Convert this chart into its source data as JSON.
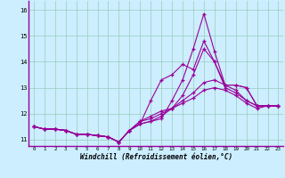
{
  "xlabel": "Windchill (Refroidissement éolien,°C)",
  "background_color": "#cceeff",
  "grid_color": "#99ccbb",
  "line_color": "#990099",
  "spine_color": "#990099",
  "xlim_min": -0.5,
  "xlim_max": 23.5,
  "ylim_min": 10.75,
  "ylim_max": 16.35,
  "yticks": [
    11,
    12,
    13,
    14,
    15,
    16
  ],
  "xticks": [
    0,
    1,
    2,
    3,
    4,
    5,
    6,
    7,
    8,
    9,
    10,
    11,
    12,
    13,
    14,
    15,
    16,
    17,
    18,
    19,
    20,
    21,
    22,
    23
  ],
  "lines": [
    [
      11.5,
      11.4,
      11.4,
      11.35,
      11.2,
      11.2,
      11.15,
      11.1,
      10.9,
      11.35,
      11.6,
      12.5,
      13.3,
      13.5,
      13.9,
      13.7,
      14.8,
      14.0,
      13.1,
      13.1,
      13.0,
      12.3,
      12.3,
      12.3
    ],
    [
      11.5,
      11.4,
      11.4,
      11.35,
      11.2,
      11.2,
      11.15,
      11.1,
      10.9,
      11.35,
      11.6,
      11.7,
      11.8,
      12.5,
      13.3,
      14.5,
      15.85,
      14.4,
      13.1,
      13.1,
      13.0,
      12.3,
      12.3,
      12.3
    ],
    [
      11.5,
      11.4,
      11.4,
      11.35,
      11.2,
      11.2,
      11.15,
      11.1,
      10.9,
      11.35,
      11.6,
      11.7,
      11.9,
      12.2,
      12.7,
      13.5,
      14.5,
      14.0,
      13.0,
      12.8,
      12.5,
      12.3,
      12.3,
      12.3
    ],
    [
      11.5,
      11.4,
      11.4,
      11.35,
      11.2,
      11.2,
      11.15,
      11.1,
      10.9,
      11.35,
      11.7,
      11.8,
      12.0,
      12.2,
      12.5,
      12.8,
      13.2,
      13.3,
      13.1,
      12.9,
      12.5,
      12.3,
      12.3,
      12.3
    ],
    [
      11.5,
      11.4,
      11.4,
      11.35,
      11.2,
      11.2,
      11.15,
      11.1,
      10.9,
      11.35,
      11.7,
      11.9,
      12.1,
      12.2,
      12.4,
      12.6,
      12.9,
      13.0,
      12.9,
      12.7,
      12.4,
      12.2,
      12.3,
      12.3
    ]
  ]
}
